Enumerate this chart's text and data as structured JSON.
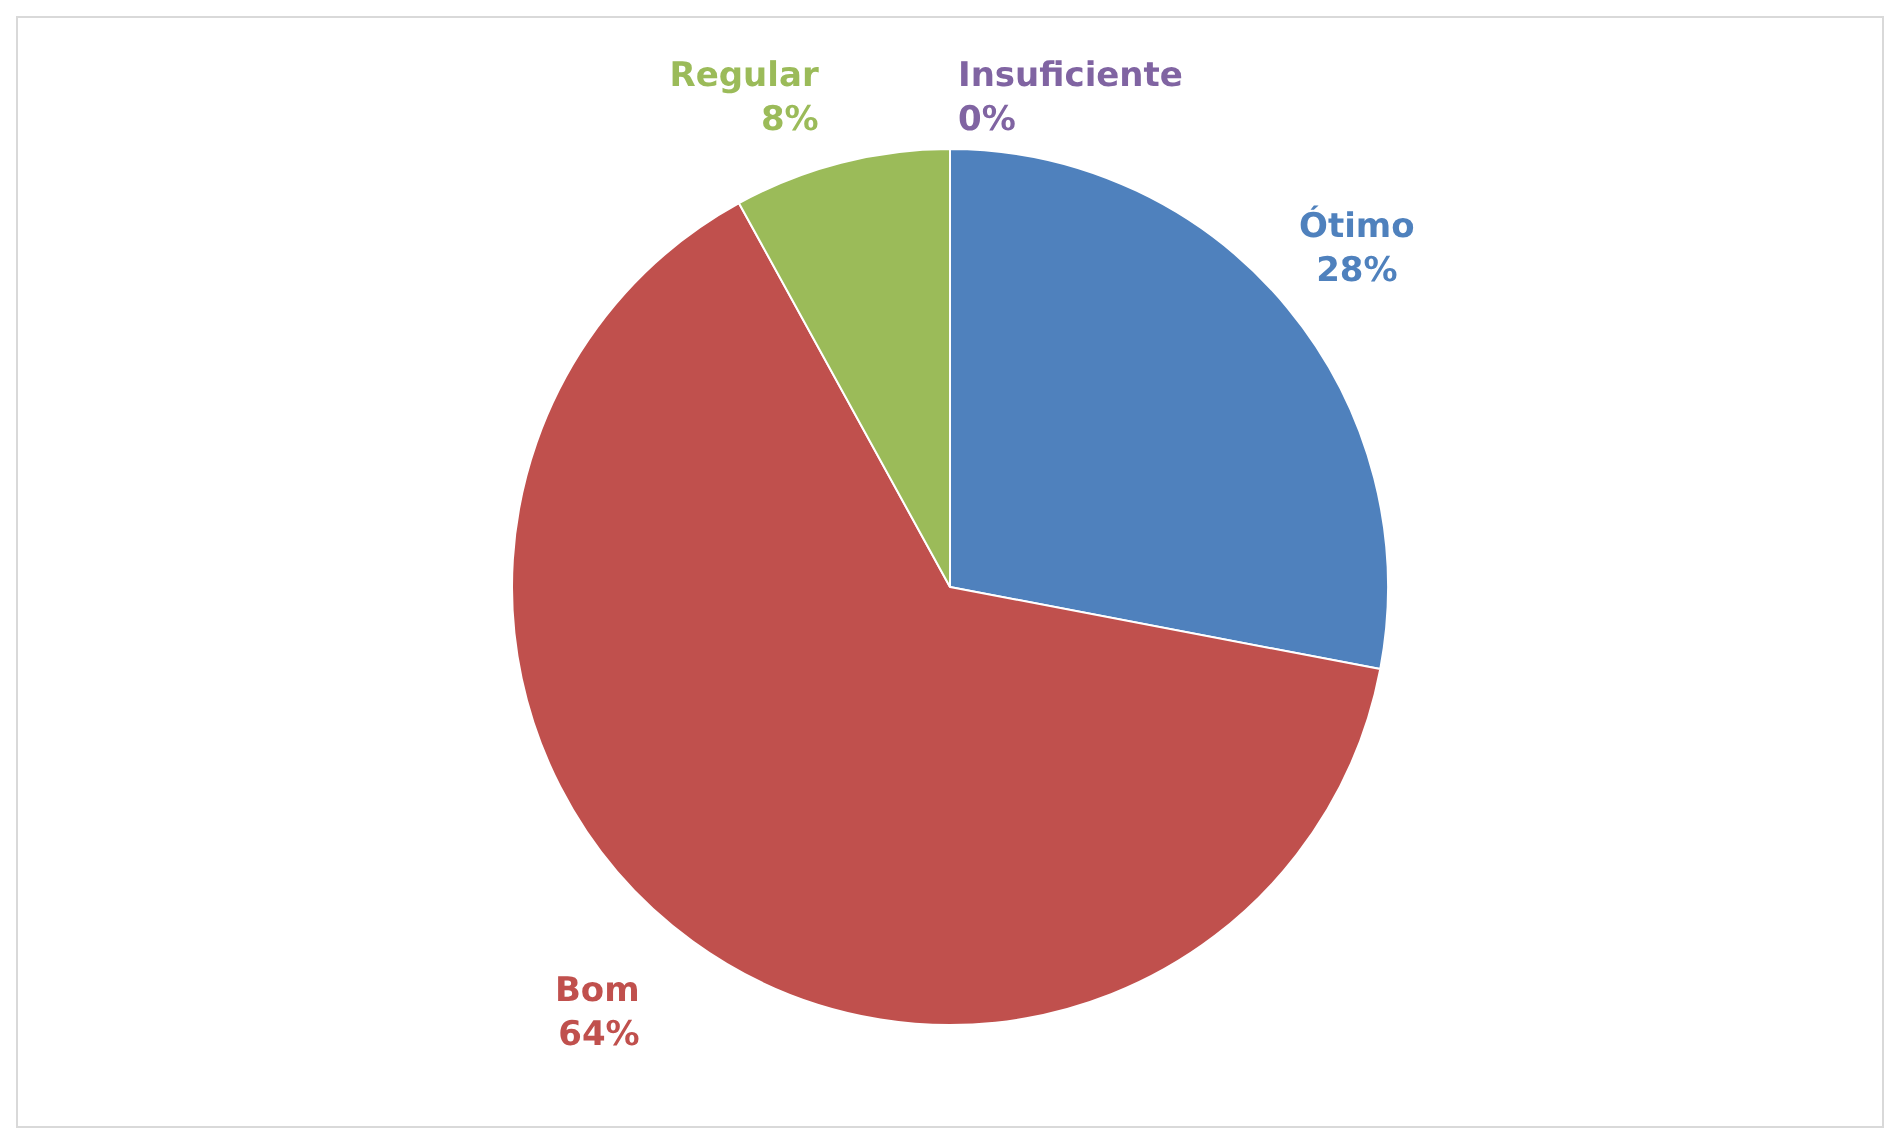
{
  "chart_data": {
    "type": "pie",
    "categories": [
      "Ótimo",
      "Bom",
      "Regular",
      "Insuficiente"
    ],
    "values": [
      28,
      64,
      8,
      0
    ],
    "value_labels": [
      "28%",
      "64%",
      "8%",
      "0%"
    ],
    "colors": [
      "#4f81bd",
      "#c0504d",
      "#9bbb59",
      "#8064a2"
    ],
    "legend": false
  }
}
